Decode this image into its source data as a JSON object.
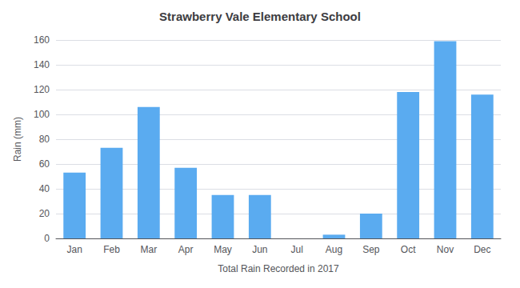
{
  "chart_data": {
    "type": "bar",
    "title": "Strawberry Vale Elementary School",
    "xlabel": "Total Rain Recorded in 2017",
    "ylabel": "Rain (mm)",
    "categories": [
      "Jan",
      "Feb",
      "Mar",
      "Apr",
      "May",
      "Jun",
      "Jul",
      "Aug",
      "Sep",
      "Oct",
      "Nov",
      "Dec"
    ],
    "values": [
      53,
      73,
      106,
      57,
      35,
      35,
      0,
      3,
      20,
      118,
      159,
      116
    ],
    "color": "#5aabf0",
    "ylim": [
      0,
      160
    ],
    "yticks": [
      0,
      20,
      40,
      60,
      80,
      100,
      120,
      140,
      160
    ],
    "grid": true
  }
}
